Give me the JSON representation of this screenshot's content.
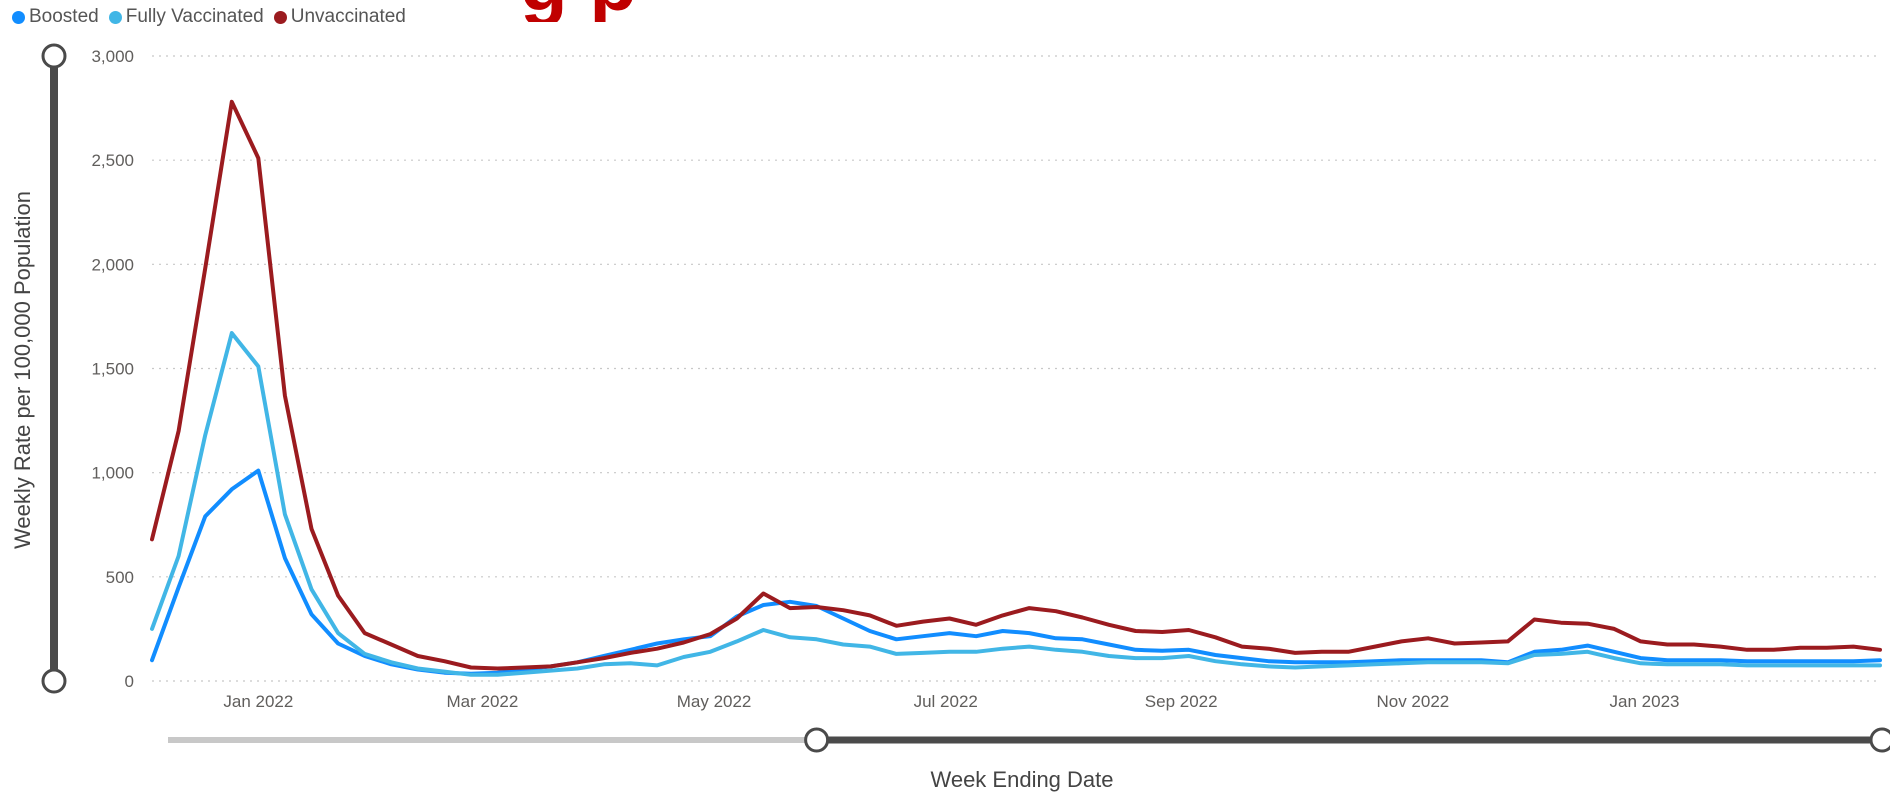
{
  "legend": {
    "items": [
      {
        "label": "Boosted",
        "color": "#118DFF"
      },
      {
        "label": "Fully Vaccinated",
        "color": "#41B6E6"
      },
      {
        "label": "Unvaccinated",
        "color": "#9B1B1F"
      }
    ]
  },
  "colors": {
    "gridline": "#c8c8c8",
    "axis_text": "#605e5c",
    "slider_dark": "#4a4a4a",
    "slider_light": "#c8c8c8"
  },
  "chart_data": {
    "type": "line",
    "title": "",
    "xlabel": "Week Ending Date",
    "ylabel": "Weekly Rate per 100,000 Population",
    "ylim": [
      0,
      3000
    ],
    "yticks": [
      0,
      500,
      1000,
      1500,
      2000,
      2500,
      3000
    ],
    "ytick_labels": [
      "0",
      "500",
      "1,000",
      "1,500",
      "2,000",
      "2,500",
      "3,000"
    ],
    "x_range": [
      "2021-12-04",
      "2023-03-04"
    ],
    "xticks": [
      "2022-01-01",
      "2022-03-01",
      "2022-05-01",
      "2022-07-01",
      "2022-09-01",
      "2022-11-01",
      "2023-01-01"
    ],
    "xtick_labels": [
      "Jan 2022",
      "Mar 2022",
      "May 2022",
      "Jul 2022",
      "Sep 2022",
      "Nov 2022",
      "Jan 2023"
    ],
    "grid": "horizontal-dotted",
    "legend_position": "top-left",
    "x": [
      "2021-12-04",
      "2021-12-11",
      "2021-12-18",
      "2021-12-25",
      "2022-01-01",
      "2022-01-08",
      "2022-01-15",
      "2022-01-22",
      "2022-01-29",
      "2022-02-05",
      "2022-02-12",
      "2022-02-19",
      "2022-02-26",
      "2022-03-05",
      "2022-03-12",
      "2022-03-19",
      "2022-03-26",
      "2022-04-02",
      "2022-04-09",
      "2022-04-16",
      "2022-04-23",
      "2022-04-30",
      "2022-05-07",
      "2022-05-14",
      "2022-05-21",
      "2022-05-28",
      "2022-06-04",
      "2022-06-11",
      "2022-06-18",
      "2022-06-25",
      "2022-07-02",
      "2022-07-09",
      "2022-07-16",
      "2022-07-23",
      "2022-07-30",
      "2022-08-06",
      "2022-08-13",
      "2022-08-20",
      "2022-08-27",
      "2022-09-03",
      "2022-09-10",
      "2022-09-17",
      "2022-09-24",
      "2022-10-01",
      "2022-10-08",
      "2022-10-15",
      "2022-10-22",
      "2022-10-29",
      "2022-11-05",
      "2022-11-12",
      "2022-11-19",
      "2022-11-26",
      "2022-12-03",
      "2022-12-10",
      "2022-12-17",
      "2022-12-24",
      "2022-12-31",
      "2023-01-07",
      "2023-01-14",
      "2023-01-21",
      "2023-01-28",
      "2023-02-04",
      "2023-02-11",
      "2023-02-18",
      "2023-02-25",
      "2023-03-04"
    ],
    "series": [
      {
        "name": "Boosted",
        "color": "#118DFF",
        "values": [
          100,
          450,
          790,
          920,
          1010,
          590,
          320,
          180,
          120,
          80,
          55,
          40,
          35,
          40,
          55,
          70,
          90,
          120,
          150,
          180,
          200,
          215,
          310,
          365,
          380,
          360,
          300,
          240,
          200,
          215,
          230,
          215,
          240,
          230,
          205,
          200,
          175,
          150,
          145,
          150,
          125,
          110,
          95,
          90,
          90,
          90,
          95,
          100,
          100,
          100,
          100,
          90,
          140,
          150,
          170,
          140,
          110,
          100,
          100,
          100,
          95,
          95,
          95,
          95,
          95,
          100
        ]
      },
      {
        "name": "Fully Vaccinated",
        "color": "#41B6E6",
        "values": [
          250,
          600,
          1180,
          1670,
          1510,
          800,
          440,
          230,
          130,
          90,
          60,
          45,
          30,
          30,
          40,
          50,
          60,
          80,
          85,
          75,
          115,
          140,
          190,
          245,
          210,
          200,
          175,
          165,
          130,
          135,
          140,
          140,
          155,
          165,
          150,
          140,
          120,
          110,
          110,
          120,
          95,
          80,
          70,
          65,
          70,
          75,
          80,
          85,
          90,
          90,
          90,
          85,
          125,
          130,
          140,
          110,
          85,
          80,
          80,
          80,
          75,
          75,
          75,
          75,
          75,
          75
        ]
      },
      {
        "name": "Unvaccinated",
        "color": "#9B1B1F",
        "values": [
          680,
          1200,
          1980,
          2780,
          2510,
          1370,
          730,
          410,
          230,
          175,
          120,
          95,
          65,
          60,
          65,
          70,
          90,
          110,
          135,
          155,
          185,
          225,
          300,
          420,
          350,
          355,
          340,
          315,
          265,
          285,
          300,
          270,
          315,
          350,
          335,
          305,
          270,
          240,
          235,
          245,
          210,
          165,
          155,
          135,
          140,
          140,
          165,
          190,
          205,
          180,
          185,
          190,
          295,
          280,
          275,
          250,
          190,
          175,
          175,
          165,
          150,
          150,
          160,
          160,
          165,
          150
        ]
      }
    ]
  },
  "slider": {
    "y_range_start": 0,
    "y_range_end": 3000,
    "x_range_start": "2022-05-28",
    "x_range_end": "2023-03-04"
  },
  "clipped_title": "g                                          p"
}
